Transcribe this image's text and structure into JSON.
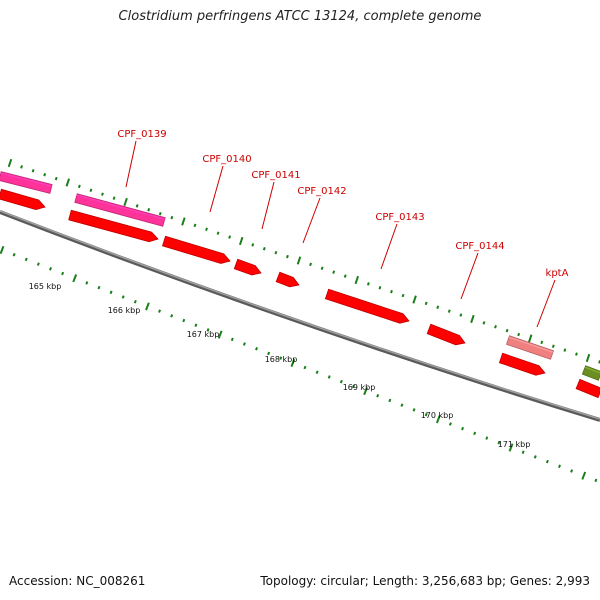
{
  "title": "Clostridium perfringens ATCC 13124, complete genome",
  "footer": {
    "accession": "Accession: NC_008261",
    "summary": "Topology: circular; Length: 3,256,683 bp; Genes: 2,993"
  },
  "kbp_labels": [
    "165 kbp",
    "166 kbp",
    "167 kbp",
    "168 kbp",
    "169 kbp",
    "170 kbp",
    "171 kbp"
  ],
  "gene_labels": [
    "CPF_0139",
    "CPF_0140",
    "CPF_0141",
    "CPF_0142",
    "CPF_0143",
    "CPF_0144",
    "kptA"
  ],
  "colors": {
    "cds": "#ff0000",
    "pink_feature": "#ff3399",
    "light_feature": "#f08080",
    "green_feature": "#6b8e23",
    "ticks": "#1a7f1a",
    "backbone": "#808080",
    "label": "#cc0000"
  }
}
